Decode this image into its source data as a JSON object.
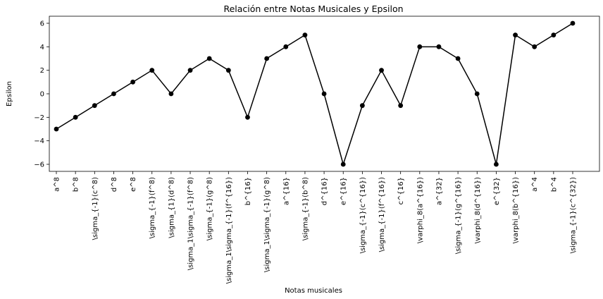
{
  "chart_data": {
    "type": "line",
    "title": "Relación entre Notas Musicales y Epsilon",
    "xlabel": "Notas musicales",
    "ylabel": "Epsilon",
    "categories": [
      "a^8",
      "b^8",
      "\\sigma_{-1}(c^8)",
      "d^8",
      "e^8",
      "\\sigma_{-1}(f^8)",
      "\\sigma_{1}(d^8)",
      "\\sigma_1\\sigma_{-1}(f^8)",
      "\\sigma_{-1}(g^8)",
      "\\sigma_1\\sigma_{-1}(f^{16})",
      "b^{16}",
      "\\sigma_1\\sigma_{-1}(g^8)",
      "a^{16}",
      "\\sigma_{-1}(b^8)",
      "d^{16}",
      "e^{16}",
      "\\sigma_{-1}(c^{16})",
      "\\sigma_{-1}(f^{16})",
      "c^{16}",
      "\\varphi_8(a^{16})",
      "a^{32}",
      "\\sigma_{-1}(g^{16})",
      "\\varphi_8(d^{16})",
      "e^{32}",
      "\\varphi_8(b^{16})",
      "a^4",
      "b^4",
      "\\sigma_{-1}(c^{32})"
    ],
    "values": [
      -3,
      -2,
      -1,
      0,
      1,
      2,
      0,
      2,
      3,
      2,
      -2,
      3,
      4,
      5,
      0,
      -6,
      -1,
      2,
      -1,
      4,
      4,
      3,
      0,
      -6,
      5,
      4,
      5,
      6
    ],
    "yticks": [
      -6,
      -4,
      -2,
      0,
      2,
      4,
      6
    ],
    "ylim": [
      -6.6,
      6.6
    ],
    "grid": false,
    "line_color": "#000000",
    "marker": "circle"
  }
}
